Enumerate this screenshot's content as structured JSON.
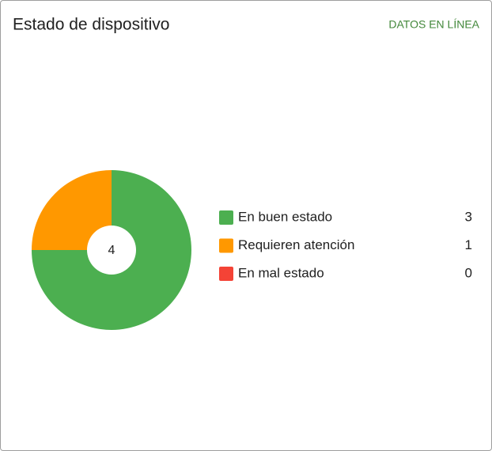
{
  "header": {
    "title": "Estado de dispositivo",
    "link": "DATOS EN LÍNEA"
  },
  "chart_data": {
    "type": "pie",
    "center_label": "4",
    "categories": [
      "En buen estado",
      "Requieren atención",
      "En mal estado"
    ],
    "values": [
      3,
      1,
      0
    ],
    "colors": [
      "#4caf50",
      "#ff9800",
      "#f44336"
    ]
  }
}
